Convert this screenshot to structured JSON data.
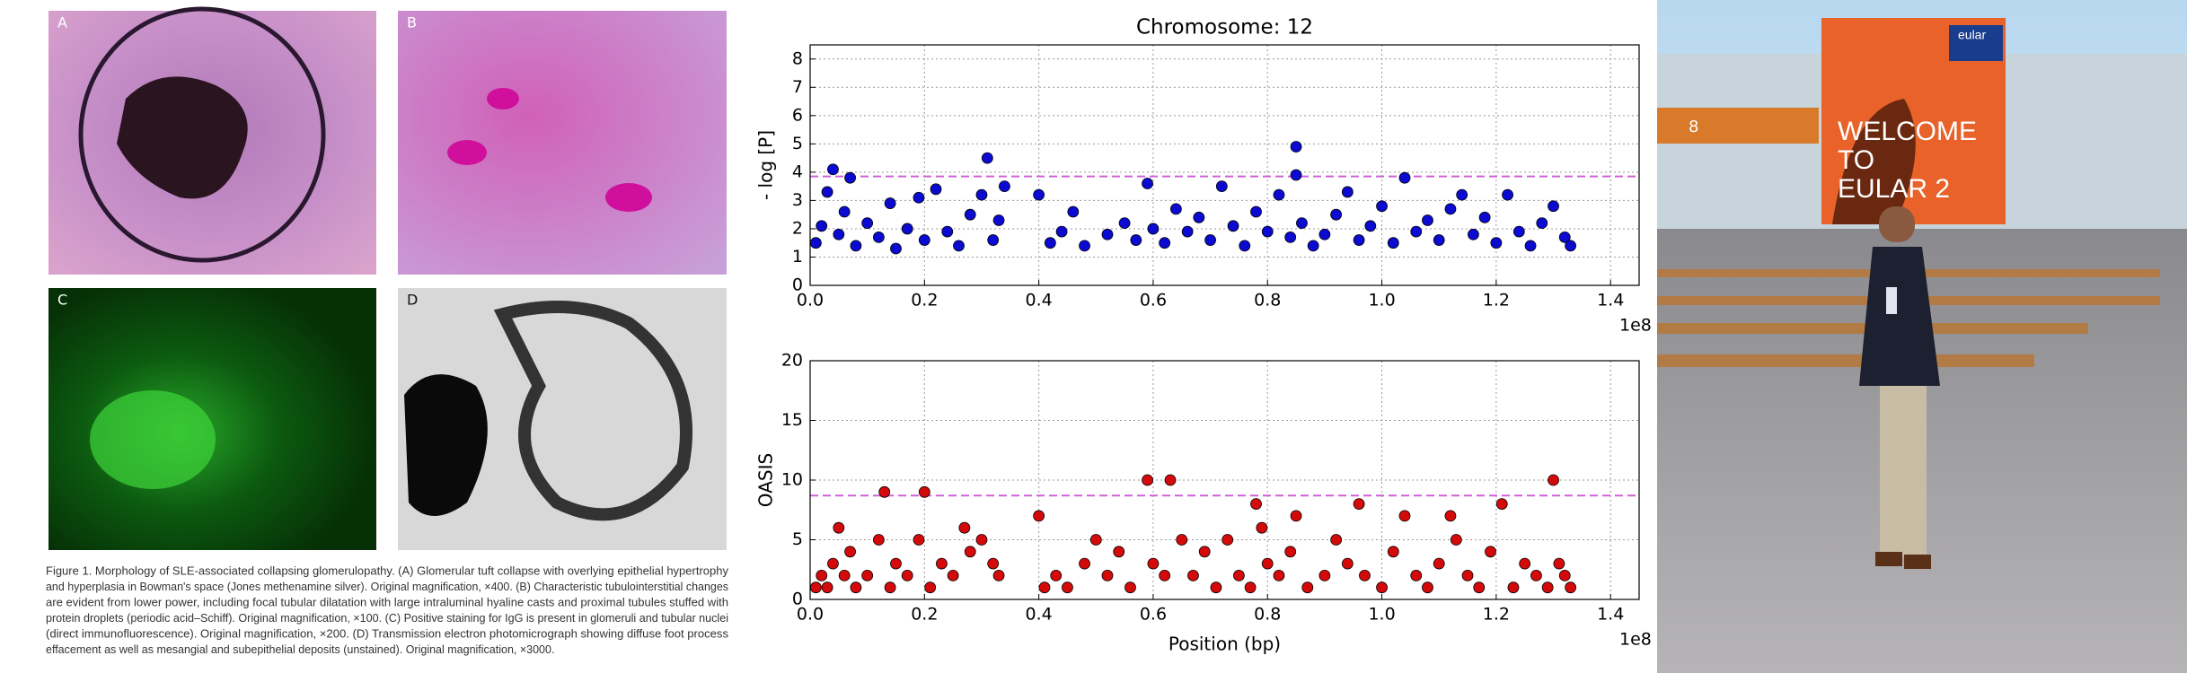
{
  "figure": {
    "panels": [
      "A",
      "B",
      "C",
      "D"
    ],
    "caption_lines": [
      "Figure 1.  Morphology of SLE-associated collapsing glomerulopathy. (A) Glomerular tuft collapse with overlying epithelial hypertrophy",
      "and hyperplasia in Bowman's space (Jones methenamine silver). Original magnification, ×400. (B) Characteristic tubulointerstitial changes",
      "are evident from lower power, including focal tubular dilatation with large intraluminal hyaline casts and proximal tubules stuffed with",
      "protein droplets (periodic acid–Schiff). Original magnification, ×100. (C) Positive staining for IgG is present in glomeruli and tubular nuclei",
      "(direct immunofluorescence). Original magnification, ×200. (D) Transmission electron photomicrograph showing diffuse foot process",
      "effacement as well as mesangial and subepithelial deposits (unstained). Original magnification, ×3000."
    ]
  },
  "chart_data": [
    {
      "type": "scatter",
      "title": "Chromosome: 12",
      "ylabel": "- log [P]",
      "x_offset_label": "1e8",
      "xlim": [
        0,
        145000000
      ],
      "xticks": [
        {
          "value": 0,
          "label": "0.0"
        },
        {
          "value": 20000000,
          "label": "0.2"
        },
        {
          "value": 40000000,
          "label": "0.4"
        },
        {
          "value": 60000000,
          "label": "0.6"
        },
        {
          "value": 80000000,
          "label": "0.8"
        },
        {
          "value": 100000000,
          "label": "1.0"
        },
        {
          "value": 120000000,
          "label": "1.2"
        },
        {
          "value": 140000000,
          "label": "1.4"
        }
      ],
      "ylim": [
        0,
        8.5
      ],
      "yticks": [
        0,
        1,
        2,
        3,
        4,
        5,
        6,
        7,
        8
      ],
      "grid": true,
      "threshold": 3.85,
      "threshold_color": "#d060d8",
      "color": "#0a0ad0",
      "x": [
        1000000.0,
        2000000.0,
        3000000.0,
        4000000.0,
        5000000.0,
        6000000.0,
        7000000.0,
        8000000.0,
        10000000.0,
        12000000.0,
        14000000.0,
        15000000.0,
        17000000.0,
        19000000.0,
        20000000.0,
        22000000.0,
        24000000.0,
        26000000.0,
        28000000.0,
        30000000.0,
        31000000.0,
        32000000.0,
        33000000.0,
        34000000.0,
        40000000.0,
        42000000.0,
        44000000.0,
        46000000.0,
        48000000.0,
        52000000.0,
        55000000.0,
        57000000.0,
        59000000.0,
        60000000.0,
        62000000.0,
        64000000.0,
        66000000.0,
        68000000.0,
        70000000.0,
        72000000.0,
        74000000.0,
        76000000.0,
        78000000.0,
        80000000.0,
        82000000.0,
        84000000.0,
        85000000.0,
        85000000.0,
        86000000.0,
        88000000.0,
        90000000.0,
        92000000.0,
        94000000.0,
        96000000.0,
        98000000.0,
        100000000.0,
        102000000.0,
        104000000.0,
        106000000.0,
        108000000.0,
        110000000.0,
        112000000.0,
        114000000.0,
        116000000.0,
        118000000.0,
        120000000.0,
        122000000.0,
        124000000.0,
        126000000.0,
        128000000.0,
        130000000.0,
        132000000.0,
        133000000.0
      ],
      "values": [
        1.5,
        2.1,
        3.3,
        4.1,
        1.8,
        2.6,
        3.8,
        1.4,
        2.2,
        1.7,
        2.9,
        1.3,
        2.0,
        3.1,
        1.6,
        3.4,
        1.9,
        1.4,
        2.5,
        3.2,
        4.5,
        1.6,
        2.3,
        3.5,
        3.2,
        1.5,
        1.9,
        2.6,
        1.4,
        1.8,
        2.2,
        1.6,
        3.6,
        2.0,
        1.5,
        2.7,
        1.9,
        2.4,
        1.6,
        3.5,
        2.1,
        1.4,
        2.6,
        1.9,
        3.2,
        1.7,
        4.9,
        3.9,
        2.2,
        1.4,
        1.8,
        2.5,
        3.3,
        1.6,
        2.1,
        2.8,
        1.5,
        3.8,
        1.9,
        2.3,
        1.6,
        2.7,
        3.2,
        1.8,
        2.4,
        1.5,
        3.2,
        1.9,
        1.4,
        2.2,
        2.8,
        1.7,
        1.4
      ]
    },
    {
      "type": "scatter",
      "ylabel": "OASIS",
      "xlabel": "Position (bp)",
      "x_offset_label": "1e8",
      "xlim": [
        0,
        145000000
      ],
      "xticks": [
        {
          "value": 0,
          "label": "0.0"
        },
        {
          "value": 20000000,
          "label": "0.2"
        },
        {
          "value": 40000000,
          "label": "0.4"
        },
        {
          "value": 60000000,
          "label": "0.6"
        },
        {
          "value": 80000000,
          "label": "0.8"
        },
        {
          "value": 100000000,
          "label": "1.0"
        },
        {
          "value": 120000000,
          "label": "1.2"
        },
        {
          "value": 140000000,
          "label": "1.4"
        }
      ],
      "ylim": [
        0,
        20
      ],
      "yticks": [
        0,
        5,
        10,
        15,
        20
      ],
      "grid": true,
      "threshold": 8.7,
      "threshold_color": "#d060d8",
      "color": "#d40a0a",
      "x": [
        1000000.0,
        2000000.0,
        3000000.0,
        4000000.0,
        5000000.0,
        6000000.0,
        7000000.0,
        8000000.0,
        10000000.0,
        12000000.0,
        13000000.0,
        14000000.0,
        15000000.0,
        17000000.0,
        19000000.0,
        20000000.0,
        21000000.0,
        23000000.0,
        25000000.0,
        27000000.0,
        28000000.0,
        30000000.0,
        32000000.0,
        33000000.0,
        40000000.0,
        41000000.0,
        43000000.0,
        45000000.0,
        48000000.0,
        50000000.0,
        52000000.0,
        54000000.0,
        56000000.0,
        59000000.0,
        60000000.0,
        62000000.0,
        63000000.0,
        65000000.0,
        67000000.0,
        69000000.0,
        71000000.0,
        73000000.0,
        75000000.0,
        77000000.0,
        78000000.0,
        79000000.0,
        80000000.0,
        82000000.0,
        84000000.0,
        85000000.0,
        87000000.0,
        90000000.0,
        92000000.0,
        94000000.0,
        96000000.0,
        97000000.0,
        100000000.0,
        102000000.0,
        104000000.0,
        106000000.0,
        108000000.0,
        110000000.0,
        112000000.0,
        113000000.0,
        115000000.0,
        117000000.0,
        119000000.0,
        121000000.0,
        123000000.0,
        125000000.0,
        127000000.0,
        129000000.0,
        130000000.0,
        131000000.0,
        132000000.0,
        133000000.0
      ],
      "values": [
        1,
        2,
        1,
        3,
        6,
        2,
        4,
        1,
        2,
        5,
        9,
        1,
        3,
        2,
        5,
        9,
        1,
        3,
        2,
        6,
        4,
        5,
        3,
        2,
        7,
        1,
        2,
        1,
        3,
        5,
        2,
        4,
        1,
        10,
        3,
        2,
        10,
        5,
        2,
        4,
        1,
        5,
        2,
        1,
        8,
        6,
        3,
        2,
        4,
        7,
        1,
        2,
        5,
        3,
        8,
        2,
        1,
        4,
        7,
        2,
        1,
        3,
        7,
        5,
        2,
        1,
        4,
        8,
        1,
        3,
        2,
        1,
        10,
        3,
        2,
        1
      ]
    }
  ],
  "photo": {
    "sign_brand": "eular",
    "sign_lines": [
      "WELCOME",
      "TO",
      "EULAR 2"
    ],
    "gate": "8"
  }
}
